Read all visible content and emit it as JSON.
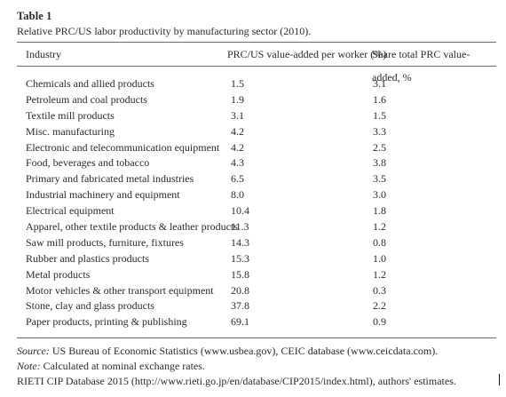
{
  "table": {
    "label": "Table 1",
    "caption": "Relative PRC/US labor productivity by manufacturing sector (2010).",
    "headers": {
      "industry": "Industry",
      "prc": "PRC/US value-added per worker (%)",
      "share": "Share total PRC value-added, %"
    },
    "rows": [
      {
        "industry": "Chemicals and allied products",
        "prc": "1.5",
        "share": "3.1"
      },
      {
        "industry": "Petroleum and coal products",
        "prc": "1.9",
        "share": "1.6"
      },
      {
        "industry": "Textile mill products",
        "prc": "3.1",
        "share": "1.5"
      },
      {
        "industry": "Misc. manufacturing",
        "prc": "4.2",
        "share": "3.3"
      },
      {
        "industry": "Electronic and telecommunication equipment",
        "prc": "4.2",
        "share": "2.5"
      },
      {
        "industry": "Food, beverages and tobacco",
        "prc": "4.3",
        "share": "3.8"
      },
      {
        "industry": "Primary and fabricated metal industries",
        "prc": "6.5",
        "share": "3.5"
      },
      {
        "industry": "Industrial machinery and equipment",
        "prc": "8.0",
        "share": "3.0"
      },
      {
        "industry": "Electrical equipment",
        "prc": "10.4",
        "share": "1.8"
      },
      {
        "industry": "Apparel, other textile products & leather products",
        "prc": "11.3",
        "share": "1.2"
      },
      {
        "industry": "Saw mill products, furniture, fixtures",
        "prc": "14.3",
        "share": "0.8"
      },
      {
        "industry": "Rubber and plastics products",
        "prc": "15.3",
        "share": "1.0"
      },
      {
        "industry": "Metal products",
        "prc": "15.8",
        "share": "1.2"
      },
      {
        "industry": "Motor vehicles & other transport equipment",
        "prc": "20.8",
        "share": "0.3"
      },
      {
        "industry": "Stone, clay and glass products",
        "prc": "37.8",
        "share": "2.2"
      },
      {
        "industry": "Paper products, printing & publishing",
        "prc": "69.1",
        "share": "0.9"
      }
    ]
  },
  "notes": {
    "source_label": "Source:",
    "source_text_1": "US Bureau of Economic Statistics (",
    "source_link_1": "www.usbea.gov",
    "source_text_2": "), CEIC database (",
    "source_link_2": "www.ceicdata.com",
    "source_text_3": ").",
    "note_label": "Note:",
    "note_text": "Calculated at nominal exchange rates.",
    "rieti_text_1": "RIETI CIP Database 2015 (",
    "rieti_link": "http://www.rieti.go.jp/en/database/CIP2015/index.html",
    "rieti_text_2": "), authors' estimates."
  }
}
